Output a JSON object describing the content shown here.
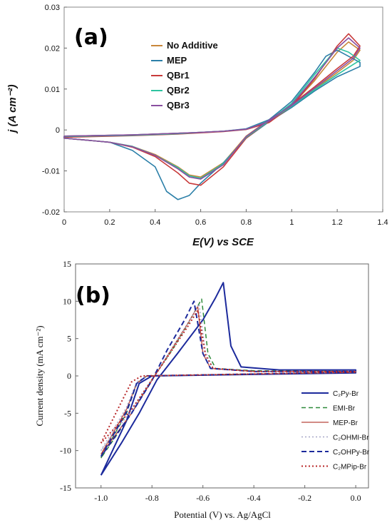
{
  "chart_data": [
    {
      "type": "line",
      "panel_label": "(a)",
      "xlabel": "E(V) vs SCE",
      "ylabel": "j (A cm⁻²)",
      "xlim": [
        0,
        1.4
      ],
      "ylim": [
        -0.02,
        0.03
      ],
      "x_ticks": [
        "0",
        "0.2",
        "0.4",
        "0.6",
        "0.8",
        "1",
        "1.2",
        "1.4"
      ],
      "y_ticks": [
        "-0.02",
        "-0.01",
        "0",
        "0.01",
        "0.02",
        "0.03"
      ],
      "legend_position": "top-center",
      "grid": false,
      "series": [
        {
          "name": "No Additive",
          "color": "#c8873a",
          "x": [
            0,
            0.3,
            0.5,
            0.6,
            0.7,
            0.8,
            0.9,
            1.0,
            1.1,
            1.2,
            1.25,
            1.3,
            1.27,
            1.2,
            1.1,
            1.0,
            0.9,
            0.8,
            0.7,
            0.6,
            0.55,
            0.5,
            0.4,
            0.3,
            0.2,
            0,
            0
          ],
          "y": [
            -0.0015,
            -0.0012,
            -0.0008,
            -0.0006,
            -0.0003,
            0.0002,
            0.002,
            0.006,
            0.012,
            0.019,
            0.0215,
            0.0195,
            0.017,
            0.014,
            0.01,
            0.006,
            0.0025,
            -0.0015,
            -0.008,
            -0.0115,
            -0.011,
            -0.009,
            -0.006,
            -0.004,
            -0.003,
            -0.002,
            -0.0015
          ]
        },
        {
          "name": "MEP",
          "color": "#2b7fa8",
          "x": [
            0,
            0.3,
            0.5,
            0.6,
            0.7,
            0.8,
            0.9,
            1.0,
            1.1,
            1.15,
            1.2,
            1.25,
            1.3,
            1.3,
            1.2,
            1.1,
            1.0,
            0.9,
            0.8,
            0.7,
            0.6,
            0.55,
            0.5,
            0.45,
            0.4,
            0.3,
            0.2,
            0,
            0
          ],
          "y": [
            -0.0015,
            -0.0012,
            -0.0008,
            -0.0006,
            -0.0003,
            0.0003,
            0.0025,
            0.007,
            0.014,
            0.018,
            0.0195,
            0.018,
            0.0165,
            0.0155,
            0.013,
            0.0095,
            0.0055,
            0.002,
            -0.002,
            -0.008,
            -0.013,
            -0.016,
            -0.017,
            -0.015,
            -0.009,
            -0.005,
            -0.003,
            -0.002,
            -0.0015
          ]
        },
        {
          "name": "QBr1",
          "color": "#c83a3a",
          "x": [
            0,
            0.3,
            0.5,
            0.6,
            0.7,
            0.8,
            0.9,
            1.0,
            1.1,
            1.2,
            1.25,
            1.3,
            1.27,
            1.2,
            1.1,
            1.0,
            0.9,
            0.8,
            0.7,
            0.6,
            0.55,
            0.5,
            0.4,
            0.3,
            0.2,
            0,
            0
          ],
          "y": [
            -0.0018,
            -0.0014,
            -0.001,
            -0.0007,
            -0.0004,
            0.0001,
            0.0018,
            0.0058,
            0.0125,
            0.0205,
            0.0235,
            0.0205,
            0.018,
            0.015,
            0.0105,
            0.0062,
            0.0022,
            -0.002,
            -0.009,
            -0.0135,
            -0.013,
            -0.0105,
            -0.0065,
            -0.0042,
            -0.003,
            -0.002,
            -0.0018
          ]
        },
        {
          "name": "QBr2",
          "color": "#2ec4a0",
          "x": [
            0,
            0.3,
            0.5,
            0.6,
            0.7,
            0.8,
            0.9,
            1.0,
            1.1,
            1.2,
            1.25,
            1.3,
            1.27,
            1.2,
            1.1,
            1.0,
            0.9,
            0.8,
            0.7,
            0.6,
            0.55,
            0.5,
            0.4,
            0.3,
            0.2,
            0,
            0
          ],
          "y": [
            -0.0016,
            -0.0013,
            -0.0009,
            -0.0006,
            -0.0003,
            0.0002,
            0.0022,
            0.0065,
            0.0135,
            0.02,
            0.019,
            0.017,
            0.016,
            0.0135,
            0.0098,
            0.0058,
            0.0022,
            -0.0018,
            -0.0082,
            -0.0118,
            -0.0112,
            -0.0092,
            -0.0062,
            -0.004,
            -0.003,
            -0.002,
            -0.0016
          ]
        },
        {
          "name": "QBr3",
          "color": "#8a4fa0",
          "x": [
            0,
            0.3,
            0.5,
            0.6,
            0.7,
            0.8,
            0.9,
            1.0,
            1.1,
            1.2,
            1.25,
            1.3,
            1.27,
            1.2,
            1.1,
            1.0,
            0.9,
            0.8,
            0.7,
            0.6,
            0.55,
            0.5,
            0.4,
            0.3,
            0.2,
            0,
            0
          ],
          "y": [
            -0.0015,
            -0.0012,
            -0.0008,
            -0.0006,
            -0.0003,
            0.0002,
            0.0021,
            0.0062,
            0.0128,
            0.02,
            0.0225,
            0.02,
            0.0175,
            0.0145,
            0.0102,
            0.006,
            0.0024,
            -0.0016,
            -0.0085,
            -0.012,
            -0.0115,
            -0.0095,
            -0.0062,
            -0.0041,
            -0.003,
            -0.002,
            -0.0015
          ]
        }
      ]
    },
    {
      "type": "line",
      "panel_label": "(b)",
      "xlabel": "Potential (V) vs. Ag/AgCl",
      "ylabel": "Current density (mA cm⁻²)",
      "xlim": [
        -1.1,
        0.05
      ],
      "ylim": [
        -15,
        15
      ],
      "x_ticks": [
        "-1.0",
        "-0.8",
        "-0.6",
        "-0.4",
        "-0.2",
        "0.0"
      ],
      "y_ticks": [
        "-15",
        "-10",
        "-5",
        "0",
        "5",
        "10",
        "15"
      ],
      "legend_position": "bottom-right",
      "grid": false,
      "series": [
        {
          "name": "C₂Py-Br",
          "legend_label": "C2Py-Br",
          "color": "#1c2a9c",
          "dash": "solid",
          "width": 2,
          "x": [
            -1.0,
            -0.9,
            -0.85,
            -0.8,
            0.0,
            0.0,
            -0.3,
            -0.45,
            -0.49,
            -0.52,
            -0.55,
            -0.6,
            -0.7,
            -0.78,
            -0.85,
            -0.92,
            -1.0
          ],
          "y": [
            -13.3,
            -6.0,
            -1.0,
            0.0,
            0.4,
            0.8,
            0.8,
            1.2,
            4.0,
            12.5,
            10.5,
            7.5,
            3.0,
            -0.5,
            -5.0,
            -9.0,
            -13.3
          ]
        },
        {
          "name": "EMI-Br",
          "color": "#2e8a3a",
          "dash": "6,4",
          "width": 1.5,
          "x": [
            -1.0,
            -0.9,
            -0.86,
            -0.82,
            0.0,
            0.0,
            -0.4,
            -0.55,
            -0.58,
            -0.605,
            -0.65,
            -0.72,
            -0.8,
            -0.88,
            -1.0
          ],
          "y": [
            -11.0,
            -5.0,
            -1.0,
            0.0,
            0.5,
            0.6,
            0.7,
            1.0,
            3.0,
            10.3,
            7.5,
            3.5,
            -0.5,
            -5.0,
            -11.0
          ]
        },
        {
          "name": "MEP-Br",
          "color": "#b8463c",
          "dash": "solid",
          "width": 1.3,
          "x": [
            -1.0,
            -0.9,
            -0.86,
            -0.82,
            0.0,
            0.0,
            -0.4,
            -0.57,
            -0.6,
            -0.62,
            -0.66,
            -0.73,
            -0.8,
            -0.88,
            -1.0
          ],
          "y": [
            -10.5,
            -4.5,
            -1.0,
            0.0,
            0.5,
            0.6,
            0.6,
            1.0,
            3.0,
            9.3,
            7.0,
            3.2,
            -0.6,
            -5.0,
            -10.5
          ]
        },
        {
          "name": "C₂OHMI-Br",
          "legend_label": "C2OHMI-Br",
          "color": "#a8a8c8",
          "dash": "2,3",
          "width": 1.5,
          "x": [
            -1.0,
            -0.9,
            -0.86,
            -0.82,
            0.0,
            0.0,
            -0.4,
            -0.56,
            -0.59,
            -0.615,
            -0.66,
            -0.73,
            -0.8,
            -0.88,
            -1.0
          ],
          "y": [
            -10.0,
            -4.2,
            -0.8,
            0.0,
            0.5,
            0.6,
            0.6,
            1.0,
            3.2,
            9.6,
            7.0,
            3.2,
            -0.5,
            -4.6,
            -10.0
          ]
        },
        {
          "name": "C₂OHPy-Br",
          "legend_label": "C2OHPy-Br",
          "color": "#1c2a9c",
          "dash": "7,4",
          "width": 2,
          "x": [
            -1.0,
            -0.9,
            -0.86,
            -0.82,
            0.0,
            0.0,
            -0.4,
            -0.57,
            -0.6,
            -0.635,
            -0.67,
            -0.74,
            -0.8,
            -0.88,
            -1.0
          ],
          "y": [
            -10.8,
            -4.8,
            -1.0,
            0.0,
            0.5,
            0.6,
            0.6,
            1.0,
            3.0,
            10.0,
            7.6,
            3.5,
            -0.6,
            -5.0,
            -10.8
          ]
        },
        {
          "name": "C₂MPip-Br",
          "legend_label": "C2MPip-Br",
          "color": "#b8282a",
          "dash": "2,3",
          "width": 2,
          "x": [
            -1.0,
            -0.92,
            -0.88,
            -0.84,
            0.0,
            0.0,
            -0.4,
            -0.56,
            -0.59,
            -0.62,
            -0.66,
            -0.73,
            -0.8,
            -0.88,
            -1.0
          ],
          "y": [
            -9.0,
            -3.5,
            -0.8,
            0.0,
            0.5,
            0.6,
            0.6,
            1.0,
            2.8,
            8.8,
            6.6,
            3.0,
            -0.5,
            -4.5,
            -9.0
          ]
        }
      ]
    }
  ]
}
